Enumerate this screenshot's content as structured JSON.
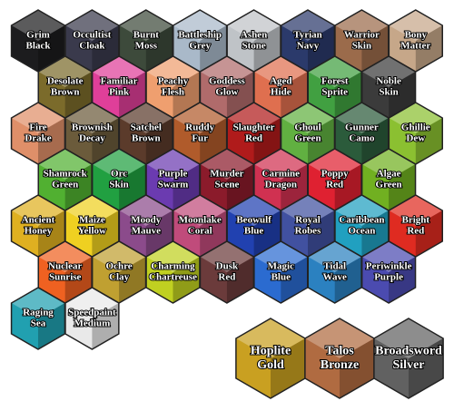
{
  "rows": [
    [
      {
        "lines": [
          "Grim",
          "Black"
        ],
        "color": "#1c1c1e"
      },
      {
        "lines": [
          "Occultist",
          "Cloak"
        ],
        "color": "#3a3a4c"
      },
      {
        "lines": [
          "Burnt",
          "Moss"
        ],
        "color": "#3d4a3b"
      },
      {
        "lines": [
          "Battleship",
          "Grey"
        ],
        "color": "#a9b9c9"
      },
      {
        "lines": [
          "Ashen",
          "Stone"
        ],
        "color": "#bfc3c7"
      },
      {
        "lines": [
          "Tyrian",
          "Navy"
        ],
        "color": "#2b3a6b"
      },
      {
        "lines": [
          "Warrior",
          "Skin"
        ],
        "color": "#9b6b4b"
      },
      {
        "lines": [
          "Bony",
          "Matter"
        ],
        "color": "#c6a789"
      }
    ],
    [
      {
        "lines": [
          "Desolate",
          "Brown"
        ],
        "color": "#7b6b2b"
      },
      {
        "lines": [
          "Familiar",
          "Pink"
        ],
        "color": "#df3f99"
      },
      {
        "lines": [
          "Peachy",
          "Flesh"
        ],
        "color": "#ef9f6f"
      },
      {
        "lines": [
          "Goddess",
          "Glow"
        ],
        "color": "#b06b6b"
      },
      {
        "lines": [
          "Aged",
          "Hide"
        ],
        "color": "#df6f4f"
      },
      {
        "lines": [
          "Forest",
          "Sprite"
        ],
        "color": "#41a041"
      },
      {
        "lines": [
          "Noble",
          "Skin"
        ],
        "color": "#3b3b3b"
      }
    ],
    [
      {
        "lines": [
          "Fire",
          "Drake"
        ],
        "color": "#df8f69"
      },
      {
        "lines": [
          "Brownish",
          "Decay"
        ],
        "color": "#6b5b3b"
      },
      {
        "lines": [
          "Satchel",
          "Brown"
        ],
        "color": "#5b3b2b"
      },
      {
        "lines": [
          "Ruddy",
          "Fur"
        ],
        "color": "#b05b2b"
      },
      {
        "lines": [
          "Slaughter",
          "Red"
        ],
        "color": "#b01b1b"
      },
      {
        "lines": [
          "Ghoul",
          "Green"
        ],
        "color": "#61b041"
      },
      {
        "lines": [
          "Gunner",
          "Camo"
        ],
        "color": "#2b5b3b"
      },
      {
        "lines": [
          "Ghillie",
          "Dew"
        ],
        "color": "#8bc031"
      }
    ],
    [
      {
        "lines": [
          "Shamrock",
          "Green"
        ],
        "color": "#51b031"
      },
      {
        "lines": [
          "Orc",
          "Skin"
        ],
        "color": "#21a041"
      },
      {
        "lines": [
          "Purple",
          "Swarm"
        ],
        "color": "#6b3bb0"
      },
      {
        "lines": [
          "Murder",
          "Scene"
        ],
        "color": "#8b1b2b"
      },
      {
        "lines": [
          "Carmine",
          "Dragon"
        ],
        "color": "#d03151"
      },
      {
        "lines": [
          "Poppy",
          "Red"
        ],
        "color": "#df2131"
      },
      {
        "lines": [
          "Algae",
          "Green"
        ],
        "color": "#71b021"
      }
    ],
    [
      {
        "lines": [
          "Ancient",
          "Honey"
        ],
        "color": "#dfb021"
      },
      {
        "lines": [
          "Maize",
          "Yellow"
        ],
        "color": "#efd021"
      },
      {
        "lines": [
          "Moody",
          "Mauve"
        ],
        "color": "#8b4b8b"
      },
      {
        "lines": [
          "Moonlake",
          "Coral"
        ],
        "color": "#c04b7b"
      },
      {
        "lines": [
          "Beowulf",
          "Blue"
        ],
        "color": "#2141b0"
      },
      {
        "lines": [
          "Royal",
          "Robes"
        ],
        "color": "#4151a0"
      },
      {
        "lines": [
          "Caribbean",
          "Ocean"
        ],
        "color": "#21a0c0"
      },
      {
        "lines": [
          "Bright",
          "Red"
        ],
        "color": "#df2b21"
      }
    ],
    [
      {
        "lines": [
          "Nuclear",
          "Sunrise"
        ],
        "color": "#ef6121"
      },
      {
        "lines": [
          "Ochre",
          "Clay"
        ],
        "color": "#c0a031"
      },
      {
        "lines": [
          "Charming",
          "Chartreuse"
        ],
        "color": "#c0d021"
      },
      {
        "lines": [
          "Dusk",
          "Red"
        ],
        "color": "#6b3b3b"
      },
      {
        "lines": [
          "Magic",
          "Blue"
        ],
        "color": "#2b6bd0"
      },
      {
        "lines": [
          "Tidal",
          "Wave"
        ],
        "color": "#2b81c0"
      },
      {
        "lines": [
          "Periwinkle",
          "Purple"
        ],
        "color": "#4b4bb0"
      }
    ],
    [
      {
        "lines": [
          "Raging",
          "Sea"
        ],
        "color": "#21a0b0"
      },
      {
        "lines": [
          "Speedpaint",
          "Medium"
        ],
        "color": "#e9e9e9"
      }
    ]
  ],
  "large": [
    {
      "lines": [
        "Hoplite",
        "Gold"
      ],
      "color": "#c9a021"
    },
    {
      "lines": [
        "Talos",
        "Bronze"
      ],
      "color": "#b06b41"
    },
    {
      "lines": [
        "Broadsword",
        "Silver"
      ],
      "color": "#616161"
    }
  ]
}
